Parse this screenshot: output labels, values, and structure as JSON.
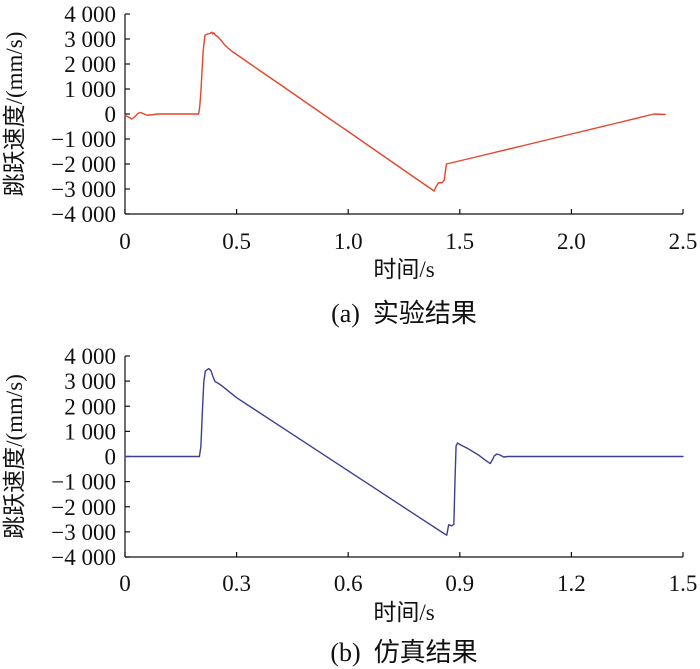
{
  "chart_data": [
    {
      "type": "line",
      "caption": "(a)  实验结果",
      "xlabel": "时间/s",
      "ylabel": "跳跃速度/(mm/s)",
      "xlim": [
        0,
        2.5
      ],
      "ylim": [
        -4000,
        4000
      ],
      "xticks": [
        0,
        0.5,
        1.0,
        1.5,
        2.0,
        2.5
      ],
      "xtick_labels": [
        "0",
        "0.5",
        "1.0",
        "1.5",
        "2.0",
        "2.5"
      ],
      "yticks": [
        4000,
        3000,
        2000,
        1000,
        0,
        -1000,
        -2000,
        -3000,
        -4000
      ],
      "ytick_labels": [
        "4 000",
        "3 000",
        "2 000",
        "1 000",
        "0",
        "−1 000",
        "−2 000",
        "−3 000",
        "−4 000"
      ],
      "grid": false,
      "series": [
        {
          "color": "#e5452f",
          "x": [
            0,
            0.015,
            0.03,
            0.045,
            0.06,
            0.07,
            0.085,
            0.1,
            0.12,
            0.15,
            0.33,
            0.335,
            0.34,
            0.35,
            0.358,
            0.37,
            0.38,
            0.388,
            0.393,
            0.398,
            0.405,
            0.415,
            0.425,
            0.435,
            0.445,
            0.46,
            0.48,
            0.5,
            0.6,
            0.7,
            0.8,
            0.9,
            1.0,
            1.1,
            1.2,
            1.3,
            1.385,
            1.395,
            1.405,
            1.42,
            1.43,
            1.44,
            1.6,
            1.8,
            2.0,
            2.2,
            2.37,
            2.42
          ],
          "y": [
            -50,
            -120,
            -200,
            -100,
            40,
            60,
            0,
            -50,
            -30,
            0,
            0,
            300,
            900,
            2500,
            3150,
            3200,
            3220,
            3270,
            3200,
            3250,
            3150,
            3100,
            3000,
            2900,
            2780,
            2650,
            2500,
            2380,
            1760,
            1150,
            530,
            -90,
            -700,
            -1320,
            -1940,
            -2560,
            -3080,
            -2880,
            -2750,
            -2750,
            -2650,
            -2000,
            -1660,
            -1230,
            -800,
            -370,
            0,
            -20
          ]
        }
      ]
    },
    {
      "type": "line",
      "caption": "(b)  仿真结果",
      "xlabel": "时间/s",
      "ylabel": "跳跃速度/(mm/s)",
      "xlim": [
        0,
        1.5
      ],
      "ylim": [
        -4000,
        4000
      ],
      "xticks": [
        0,
        0.3,
        0.6,
        0.9,
        1.2,
        1.5
      ],
      "xtick_labels": [
        "0",
        "0.3",
        "0.6",
        "0.9",
        "1.2",
        "1.5"
      ],
      "yticks": [
        4000,
        3000,
        2000,
        1000,
        0,
        -1000,
        -2000,
        -3000,
        -4000
      ],
      "ytick_labels": [
        "4 000",
        "3 000",
        "2 000",
        "1 000",
        "0",
        "−1 000",
        "−2 000",
        "−3 000",
        "−4 000"
      ],
      "grid": false,
      "series": [
        {
          "color": "#3c3f92",
          "x": [
            0,
            0.2,
            0.204,
            0.208,
            0.212,
            0.216,
            0.225,
            0.231,
            0.236,
            0.242,
            0.25,
            0.26,
            0.28,
            0.3,
            0.35,
            0.4,
            0.5,
            0.6,
            0.7,
            0.8,
            0.86,
            0.865,
            0.87,
            0.878,
            0.884,
            0.887,
            0.89,
            0.894,
            0.9,
            0.92,
            0.95,
            0.97,
            0.982,
            0.988,
            0.993,
            1.0,
            1.008,
            1.018,
            1.03,
            1.5
          ],
          "y": [
            0,
            0,
            400,
            1800,
            3000,
            3400,
            3500,
            3420,
            3200,
            2980,
            2920,
            2820,
            2580,
            2340,
            1855,
            1370,
            400,
            -570,
            -1540,
            -2510,
            -3090,
            -3130,
            -2720,
            -2760,
            -2700,
            -1000,
            420,
            540,
            480,
            330,
            60,
            -160,
            -280,
            -120,
            30,
            100,
            60,
            -20,
            0,
            0
          ]
        }
      ]
    }
  ]
}
